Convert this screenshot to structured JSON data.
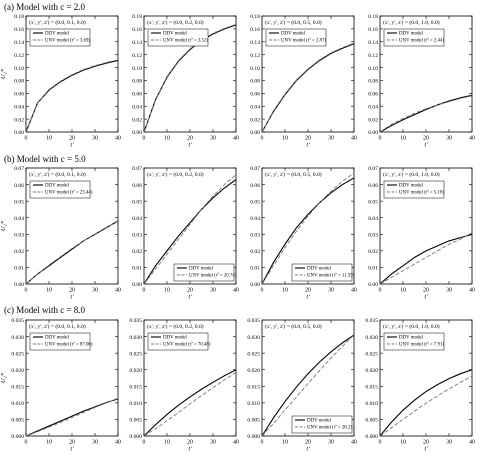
{
  "figure": {
    "groups": [
      {
        "label": "(a) Model with c = 2.0"
      },
      {
        "label": "(b) Model with c = 5.0"
      },
      {
        "label": "(c) Model with c = 8.0"
      }
    ],
    "shared_ylabel": "U₁*",
    "shared_xlabel": "t'"
  },
  "chart_data": [
    {
      "type": "line",
      "panel": "a1",
      "annotation": "(x', y', z') = (0.0, 0.1, 0.0)",
      "x": [
        0,
        5,
        10,
        15,
        20,
        25,
        30,
        35,
        40
      ],
      "xlim": [
        0,
        40
      ],
      "ylim": [
        0,
        0.18
      ],
      "xticks": [
        0,
        10,
        20,
        30,
        40
      ],
      "yticks": [
        0,
        0.02,
        0.04,
        0.06,
        0.08,
        0.1,
        0.12,
        0.14,
        0.16,
        0.18
      ],
      "xlabel": "t'",
      "ylabel": "U₁*",
      "series": [
        {
          "name": "DDV model",
          "style": "solid",
          "values": [
            0,
            0.045,
            0.065,
            0.078,
            0.088,
            0.096,
            0.102,
            0.107,
            0.111
          ]
        },
        {
          "name": "UNV model (τ̂' = 3.69)",
          "style": "dashed",
          "values": [
            0,
            0.045,
            0.066,
            0.079,
            0.089,
            0.097,
            0.103,
            0.108,
            0.112
          ]
        }
      ]
    },
    {
      "type": "line",
      "panel": "a2",
      "annotation": "(x', y', z') = (0.0, 0.2, 0.0)",
      "x": [
        0,
        5,
        10,
        15,
        20,
        25,
        30,
        35,
        40
      ],
      "xlim": [
        0,
        40
      ],
      "ylim": [
        0,
        0.18
      ],
      "xticks": [
        0,
        10,
        20,
        30,
        40
      ],
      "yticks": [
        0,
        0.02,
        0.04,
        0.06,
        0.08,
        0.1,
        0.12,
        0.14,
        0.16,
        0.18
      ],
      "xlabel": "t'",
      "ylabel": "",
      "series": [
        {
          "name": "DDV model",
          "style": "solid",
          "values": [
            0,
            0.05,
            0.085,
            0.11,
            0.128,
            0.142,
            0.152,
            0.16,
            0.166
          ]
        },
        {
          "name": "UNV model (τ̂' = 3.52)",
          "style": "dashed",
          "values": [
            0,
            0.05,
            0.086,
            0.111,
            0.129,
            0.143,
            0.153,
            0.161,
            0.167
          ]
        }
      ]
    },
    {
      "type": "line",
      "panel": "a3",
      "annotation": "(x', y', z') = (0.0, 0.5, 0.0)",
      "x": [
        0,
        5,
        10,
        15,
        20,
        25,
        30,
        35,
        40
      ],
      "xlim": [
        0,
        40
      ],
      "ylim": [
        0,
        0.18
      ],
      "xticks": [
        0,
        10,
        20,
        30,
        40
      ],
      "yticks": [
        0,
        0.02,
        0.04,
        0.06,
        0.08,
        0.1,
        0.12,
        0.14,
        0.16,
        0.18
      ],
      "xlabel": "t'",
      "ylabel": "",
      "series": [
        {
          "name": "DDV model",
          "style": "solid",
          "values": [
            0,
            0.032,
            0.058,
            0.08,
            0.097,
            0.111,
            0.122,
            0.13,
            0.137
          ]
        },
        {
          "name": "UNV model (τ̂' = 2.87)",
          "style": "dashed",
          "values": [
            0,
            0.033,
            0.059,
            0.081,
            0.098,
            0.112,
            0.123,
            0.131,
            0.138
          ]
        }
      ]
    },
    {
      "type": "line",
      "panel": "a4",
      "annotation": "(x', y', z') = (0.0, 1.0, 0.0)",
      "x": [
        0,
        5,
        10,
        15,
        20,
        25,
        30,
        35,
        40
      ],
      "xlim": [
        0,
        40
      ],
      "ylim": [
        0,
        0.18
      ],
      "xticks": [
        0,
        10,
        20,
        30,
        40
      ],
      "yticks": [
        0,
        0.02,
        0.04,
        0.06,
        0.08,
        0.1,
        0.12,
        0.14,
        0.16,
        0.18
      ],
      "xlabel": "t'",
      "ylabel": "",
      "series": [
        {
          "name": "DDV model",
          "style": "solid",
          "values": [
            0,
            0.01,
            0.019,
            0.027,
            0.035,
            0.042,
            0.048,
            0.053,
            0.057
          ]
        },
        {
          "name": "UNV model (τ̂' = 2.44)",
          "style": "dashed",
          "values": [
            0,
            0.012,
            0.021,
            0.029,
            0.036,
            0.042,
            0.047,
            0.052,
            0.056
          ]
        }
      ]
    },
    {
      "type": "line",
      "panel": "b1",
      "annotation": "(x', y', z') = (0.0, 0.1, 0.0)",
      "x": [
        0,
        5,
        10,
        15,
        20,
        25,
        30,
        35,
        40
      ],
      "xlim": [
        0,
        40
      ],
      "ylim": [
        0,
        0.07
      ],
      "xticks": [
        0,
        10,
        20,
        30,
        40
      ],
      "yticks": [
        0,
        0.01,
        0.02,
        0.03,
        0.04,
        0.05,
        0.06,
        0.07
      ],
      "xlabel": "t'",
      "ylabel": "U₁*",
      "series": [
        {
          "name": "DDV model",
          "style": "solid",
          "values": [
            0,
            0.006,
            0.011,
            0.016,
            0.021,
            0.026,
            0.03,
            0.034,
            0.038
          ]
        },
        {
          "name": "UNV model (τ̂' = 23.44)",
          "style": "dashed",
          "values": [
            0,
            0.006,
            0.0115,
            0.0165,
            0.0215,
            0.026,
            0.0302,
            0.0342,
            0.0378
          ]
        }
      ]
    },
    {
      "type": "line",
      "panel": "b2",
      "annotation": "(x', y', z') = (0.0, 0.2, 0.0)",
      "x": [
        0,
        5,
        10,
        15,
        20,
        25,
        30,
        35,
        40
      ],
      "xlim": [
        0,
        40
      ],
      "ylim": [
        0,
        0.07
      ],
      "xticks": [
        0,
        10,
        20,
        30,
        40
      ],
      "yticks": [
        0,
        0.01,
        0.02,
        0.03,
        0.04,
        0.05,
        0.06,
        0.07
      ],
      "xlabel": "t'",
      "ylabel": "",
      "series": [
        {
          "name": "DDV model",
          "style": "solid",
          "values": [
            0,
            0.011,
            0.02,
            0.029,
            0.037,
            0.045,
            0.052,
            0.058,
            0.063
          ]
        },
        {
          "name": "UNV model (τ̂' = 20.74)",
          "style": "dashed",
          "values": [
            0,
            0.009,
            0.018,
            0.027,
            0.036,
            0.045,
            0.053,
            0.06,
            0.066
          ]
        }
      ]
    },
    {
      "type": "line",
      "panel": "b3",
      "annotation": "(x', y', z') = (0.0, 0.5, 0.0)",
      "x": [
        0,
        5,
        10,
        15,
        20,
        25,
        30,
        35,
        40
      ],
      "xlim": [
        0,
        40
      ],
      "ylim": [
        0,
        0.07
      ],
      "xticks": [
        0,
        10,
        20,
        30,
        40
      ],
      "yticks": [
        0,
        0.01,
        0.02,
        0.03,
        0.04,
        0.05,
        0.06,
        0.07
      ],
      "xlabel": "t'",
      "ylabel": "",
      "series": [
        {
          "name": "DDV model",
          "style": "solid",
          "values": [
            0,
            0.013,
            0.024,
            0.034,
            0.042,
            0.049,
            0.055,
            0.06,
            0.064
          ]
        },
        {
          "name": "UNV model (τ̂' = 11.59)",
          "style": "dashed",
          "values": [
            0,
            0.011,
            0.022,
            0.032,
            0.041,
            0.049,
            0.056,
            0.062,
            0.067
          ]
        }
      ]
    },
    {
      "type": "line",
      "panel": "b4",
      "annotation": "(x', y', z') = (0.0, 1.0, 0.0)",
      "x": [
        0,
        5,
        10,
        15,
        20,
        25,
        30,
        35,
        40
      ],
      "xlim": [
        0,
        40
      ],
      "ylim": [
        0,
        0.07
      ],
      "xticks": [
        0,
        10,
        20,
        30,
        40
      ],
      "yticks": [
        0,
        0.01,
        0.02,
        0.03,
        0.04,
        0.05,
        0.06,
        0.07
      ],
      "xlabel": "t'",
      "ylabel": "",
      "series": [
        {
          "name": "DDV model",
          "style": "solid",
          "values": [
            0,
            0.006,
            0.011,
            0.016,
            0.02,
            0.023,
            0.026,
            0.028,
            0.03
          ]
        },
        {
          "name": "UNV model (τ̂' = 5.18)",
          "style": "dashed",
          "values": [
            0,
            0.004,
            0.008,
            0.012,
            0.016,
            0.02,
            0.024,
            0.027,
            0.031
          ]
        }
      ]
    },
    {
      "type": "line",
      "panel": "c1",
      "annotation": "(x', y', z') = (0.0, 0.1, 0.0)",
      "x": [
        0,
        5,
        10,
        15,
        20,
        25,
        30,
        35,
        40
      ],
      "xlim": [
        0,
        40
      ],
      "ylim": [
        0,
        0.035
      ],
      "xticks": [
        0,
        10,
        20,
        30,
        40
      ],
      "yticks": [
        0,
        0.005,
        0.01,
        0.015,
        0.02,
        0.025,
        0.03,
        0.035
      ],
      "xlabel": "t'",
      "ylabel": "U₁*",
      "series": [
        {
          "name": "DDV model",
          "style": "solid",
          "values": [
            0,
            0.0015,
            0.003,
            0.0045,
            0.006,
            0.0075,
            0.0088,
            0.0101,
            0.0112
          ]
        },
        {
          "name": "UNV model (τ̂' = 87.06)",
          "style": "dashed",
          "values": [
            0,
            0.0013,
            0.0027,
            0.0041,
            0.0056,
            0.0071,
            0.0086,
            0.01,
            0.0114
          ]
        }
      ]
    },
    {
      "type": "line",
      "panel": "c2",
      "annotation": "(x', y', z') = (0.0, 0.2, 0.0)",
      "x": [
        0,
        5,
        10,
        15,
        20,
        25,
        30,
        35,
        40
      ],
      "xlim": [
        0,
        40
      ],
      "ylim": [
        0,
        0.035
      ],
      "xticks": [
        0,
        10,
        20,
        30,
        40
      ],
      "yticks": [
        0,
        0.005,
        0.01,
        0.015,
        0.02,
        0.025,
        0.03,
        0.035
      ],
      "xlabel": "t'",
      "ylabel": "",
      "series": [
        {
          "name": "DDV model",
          "style": "solid",
          "values": [
            0,
            0.0034,
            0.0065,
            0.0093,
            0.0118,
            0.0141,
            0.0162,
            0.0182,
            0.02
          ]
        },
        {
          "name": "UNV model (τ̂' = 70.48)",
          "style": "dashed",
          "values": [
            0,
            0.0022,
            0.0046,
            0.0071,
            0.0097,
            0.0122,
            0.0146,
            0.0169,
            0.0192
          ]
        }
      ]
    },
    {
      "type": "line",
      "panel": "c3",
      "annotation": "(x', y', z') = (0.0, 0.5, 0.0)",
      "x": [
        0,
        5,
        10,
        15,
        20,
        25,
        30,
        35,
        40
      ],
      "xlim": [
        0,
        40
      ],
      "ylim": [
        0,
        0.035
      ],
      "xticks": [
        0,
        10,
        20,
        30,
        40
      ],
      "yticks": [
        0,
        0.005,
        0.01,
        0.015,
        0.02,
        0.025,
        0.03,
        0.035
      ],
      "xlabel": "t'",
      "ylabel": "",
      "series": [
        {
          "name": "DDV model",
          "style": "solid",
          "values": [
            0,
            0.0055,
            0.0104,
            0.0148,
            0.0188,
            0.0223,
            0.0254,
            0.0281,
            0.0305
          ]
        },
        {
          "name": "UNV model (τ̂' = 28.21)",
          "style": "dashed",
          "values": [
            0,
            0.0038,
            0.0078,
            0.0118,
            0.0158,
            0.0197,
            0.0235,
            0.0271,
            0.0305
          ]
        }
      ]
    },
    {
      "type": "line",
      "panel": "c4",
      "annotation": "(x', y', z') = (0.0, 1.0, 0.0)",
      "x": [
        0,
        5,
        10,
        15,
        20,
        25,
        30,
        35,
        40
      ],
      "xlim": [
        0,
        40
      ],
      "ylim": [
        0,
        0.035
      ],
      "xticks": [
        0,
        10,
        20,
        30,
        40
      ],
      "yticks": [
        0,
        0.005,
        0.01,
        0.015,
        0.02,
        0.025,
        0.03,
        0.035
      ],
      "xlabel": "t'",
      "ylabel": "",
      "series": [
        {
          "name": "DDV model",
          "style": "solid",
          "values": [
            0,
            0.0042,
            0.0078,
            0.0108,
            0.0134,
            0.0155,
            0.0173,
            0.0188,
            0.02
          ]
        },
        {
          "name": "UNV model (τ̂' = 7.91)",
          "style": "dashed",
          "values": [
            0,
            0.0025,
            0.005,
            0.0075,
            0.0099,
            0.0121,
            0.0142,
            0.0162,
            0.0181
          ]
        }
      ]
    }
  ]
}
